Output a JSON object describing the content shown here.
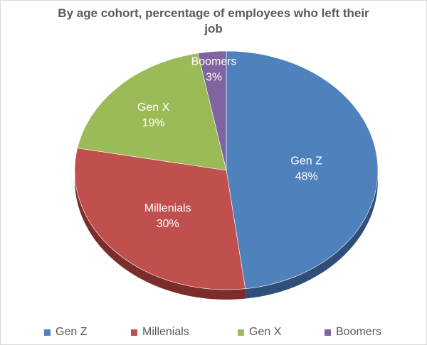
{
  "chart_data": {
    "type": "pie",
    "title": "By age cohort, percentage of employees who left their job",
    "title_lines": [
      "By age cohort, percentage of employees who left their",
      "job"
    ],
    "categories": [
      "Gen Z",
      "Millenials",
      "Gen X",
      "Boomers"
    ],
    "values": [
      48,
      30,
      19,
      3
    ],
    "value_labels": [
      "48%",
      "30%",
      "19%",
      "3%"
    ],
    "colors": [
      "#4f81bd",
      "#c0504d",
      "#9bbb59",
      "#8064a2"
    ],
    "shade_colors": [
      "#2f4f78",
      "#7a2d2b",
      "#5f7a33",
      "#4d3a66"
    ],
    "legend_position": "bottom",
    "start": "12 o'clock",
    "direction": "clockwise",
    "style": "3d-tilted"
  }
}
